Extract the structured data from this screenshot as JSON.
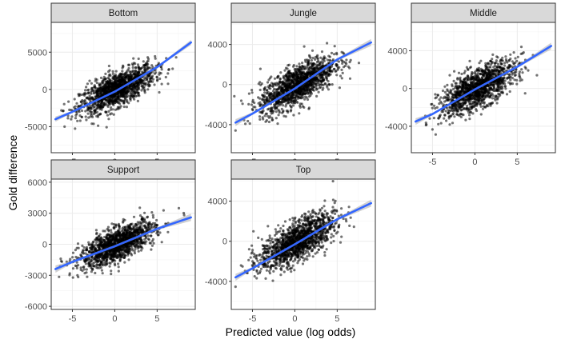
{
  "chart_data": {
    "type": "scatter",
    "xlabel": "Predicted value (log odds)",
    "ylabel": "Gold difference",
    "colors": {
      "points": "#000000",
      "trend": "#3366ff",
      "band": "#999999",
      "strip": "#d9d9d9"
    },
    "panels": [
      {
        "name": "Bottom",
        "xlim": [
          -7.5,
          9.5
        ],
        "ylim": [
          -8500,
          9000
        ],
        "x_ticks": [
          -5,
          0,
          5
        ],
        "y_ticks": [
          -5000,
          0,
          5000
        ],
        "y_tick_labels": [
          "-5000",
          "0",
          "5000"
        ],
        "cloud": {
          "x_mean": 0.3,
          "x_sd": 2.2,
          "y_mean": 0,
          "y_sd": 1550,
          "correlation": 0.7,
          "n": 1400
        },
        "trend": [
          [
            -7,
            -4000
          ],
          [
            -5,
            -3000
          ],
          [
            0,
            -300
          ],
          [
            5,
            3000
          ],
          [
            9,
            6300
          ]
        ]
      },
      {
        "name": "Jungle",
        "xlim": [
          -7.5,
          9.5
        ],
        "ylim": [
          -6800,
          6200
        ],
        "x_ticks": [
          -5,
          0,
          5
        ],
        "y_ticks": [
          -4000,
          0,
          4000
        ],
        "y_tick_labels": [
          "-4000",
          "0",
          "4000"
        ],
        "cloud": {
          "x_mean": 0.3,
          "x_sd": 2.2,
          "y_mean": 0,
          "y_sd": 1350,
          "correlation": 0.7,
          "n": 1400
        },
        "trend": [
          [
            -7,
            -3800
          ],
          [
            -5,
            -2900
          ],
          [
            0,
            -400
          ],
          [
            5,
            2500
          ],
          [
            9,
            4200
          ]
        ]
      },
      {
        "name": "Middle",
        "xlim": [
          -7.5,
          9.5
        ],
        "ylim": [
          -6800,
          7000
        ],
        "x_ticks": [
          -5,
          0,
          5
        ],
        "y_ticks": [
          -4000,
          0,
          4000
        ],
        "y_tick_labels": [
          "-4000",
          "0",
          "4000"
        ],
        "cloud": {
          "x_mean": 0.3,
          "x_sd": 2.2,
          "y_mean": 0,
          "y_sd": 1400,
          "correlation": 0.7,
          "n": 1400
        },
        "trend": [
          [
            -7,
            -3500
          ],
          [
            -5,
            -2700
          ],
          [
            0,
            -100
          ],
          [
            5,
            2300
          ],
          [
            9,
            4500
          ]
        ]
      },
      {
        "name": "Support",
        "xlim": [
          -7.5,
          9.5
        ],
        "ylim": [
          -6300,
          6300
        ],
        "x_ticks": [
          -5,
          0,
          5
        ],
        "y_ticks": [
          -6000,
          -3000,
          0,
          3000,
          6000
        ],
        "y_tick_labels": [
          "-6000",
          "-3000",
          "0",
          "3000",
          "6000"
        ],
        "cloud": {
          "x_mean": 0.3,
          "x_sd": 2.2,
          "y_mean": 0,
          "y_sd": 1100,
          "correlation": 0.7,
          "n": 1400
        },
        "trend": [
          [
            -7,
            -2400
          ],
          [
            -5,
            -1700
          ],
          [
            0,
            -200
          ],
          [
            5,
            1500
          ],
          [
            9,
            2600
          ]
        ]
      },
      {
        "name": "Top",
        "xlim": [
          -7.5,
          9.5
        ],
        "ylim": [
          -6800,
          6200
        ],
        "x_ticks": [
          -5,
          0,
          5
        ],
        "y_ticks": [
          -4000,
          0,
          4000
        ],
        "y_tick_labels": [
          "-4000",
          "0",
          "4000"
        ],
        "cloud": {
          "x_mean": 0.3,
          "x_sd": 2.2,
          "y_mean": 0,
          "y_sd": 1350,
          "correlation": 0.68,
          "n": 1400
        },
        "trend": [
          [
            -7,
            -3600
          ],
          [
            -5,
            -2700
          ],
          [
            0,
            -300
          ],
          [
            5,
            2200
          ],
          [
            9,
            3800
          ]
        ]
      }
    ]
  }
}
